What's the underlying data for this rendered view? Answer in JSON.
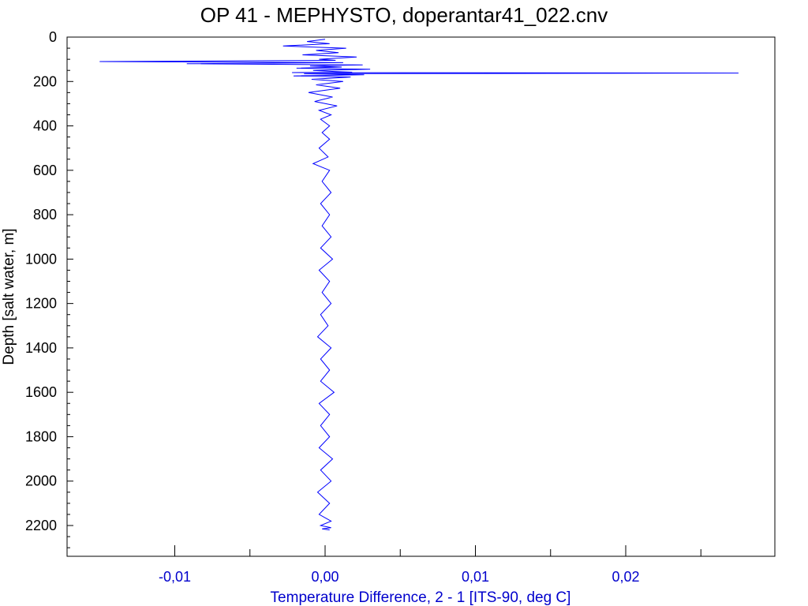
{
  "chart_data": {
    "type": "line",
    "title": "OP 41 - MEPHYSTO, doperantar41_022.cnv",
    "xlabel": "Temperature Difference, 2 - 1 [ITS-90, deg C]",
    "ylabel": "Depth [salt water, m]",
    "xlim": [
      -0.0135,
      0.03
    ],
    "ylim": [
      0,
      2330
    ],
    "y_inverted": true,
    "x_ticks": [
      -0.01,
      0.0,
      0.01,
      0.02
    ],
    "x_tick_labels": [
      "-0,01",
      "0,00",
      "0,01",
      "0,02"
    ],
    "x_minor_step": 0.005,
    "y_ticks": [
      0,
      200,
      400,
      600,
      800,
      1000,
      1200,
      1400,
      1600,
      1800,
      2000,
      2200
    ],
    "y_tick_labels": [
      "0",
      "200",
      "400",
      "600",
      "800",
      "1000",
      "1200",
      "1400",
      "1600",
      "1800",
      "2000",
      "2200"
    ],
    "y_minor_step": 50,
    "grid": false,
    "series_color": "#0000ff",
    "axis_label_color_x": "#0000cc",
    "series": [
      {
        "x": [
          0.0,
          -0.0012,
          0.0003,
          -0.0028,
          0.0014,
          -0.0006,
          0.0009,
          -0.0015,
          0.0021,
          -0.0004,
          0.0007,
          -0.015,
          0.0012,
          -0.0092,
          0.0025,
          -0.001,
          0.0011,
          -0.0019,
          0.003,
          -0.0008,
          0.0006,
          0.0018,
          -0.0022,
          0.0115,
          0.0275,
          0.019,
          -0.0014,
          0.0026,
          -0.0021,
          0.0017,
          -0.0009,
          0.0012,
          -0.0006,
          0.001,
          -0.0011,
          0.0005,
          -0.0007,
          0.0008,
          -0.0004,
          0.0004,
          -0.0003,
          0.0003,
          -0.0002,
          0.0003,
          -0.0004,
          0.0002,
          -0.0008,
          0.0003,
          -0.0002,
          0.0004,
          -0.0003,
          0.0003,
          -0.0002,
          0.0004,
          -0.0003,
          0.0005,
          -0.0004,
          0.0003,
          -0.0002,
          0.0004,
          -0.0003,
          0.0002,
          -0.0005,
          0.0004,
          -0.0003,
          0.0003,
          -0.0003,
          0.0006,
          -0.0004,
          0.0003,
          -0.0003,
          0.0003,
          -0.0004,
          0.0005,
          -0.0003,
          0.0004,
          -0.0005,
          0.0003,
          -0.0004,
          0.0004,
          -0.0003,
          0.0004,
          -0.0002,
          0.0003
        ],
        "y": [
          10,
          20,
          30,
          40,
          50,
          60,
          70,
          80,
          90,
          100,
          105,
          110,
          115,
          120,
          125,
          130,
          135,
          140,
          145,
          150,
          155,
          158,
          160,
          161,
          162,
          163,
          165,
          170,
          175,
          180,
          190,
          200,
          215,
          230,
          250,
          270,
          290,
          310,
          330,
          350,
          370,
          400,
          430,
          460,
          500,
          540,
          570,
          600,
          650,
          700,
          750,
          800,
          850,
          900,
          950,
          1000,
          1050,
          1100,
          1150,
          1200,
          1250,
          1300,
          1350,
          1400,
          1450,
          1500,
          1550,
          1600,
          1650,
          1700,
          1750,
          1800,
          1850,
          1900,
          1950,
          2000,
          2050,
          2100,
          2150,
          2180,
          2200,
          2210,
          2215,
          2220
        ]
      }
    ]
  }
}
